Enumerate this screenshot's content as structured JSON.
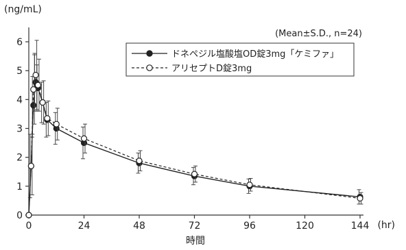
{
  "chart_data": {
    "type": "line",
    "ylabel": "(ng/mL)",
    "xlabel": "時間",
    "xunit": "(hr)",
    "annotation": "(Mean±S.D., n=24)",
    "xlim": [
      0,
      144
    ],
    "ylim": [
      0,
      6
    ],
    "xticks": [
      0,
      24,
      48,
      72,
      96,
      120,
      144
    ],
    "yticks": [
      0,
      1,
      2,
      3,
      4,
      5,
      6
    ],
    "grid": false,
    "legend_position": "top-right",
    "series": [
      {
        "name": "ドネペジル塩酸塩OD錠3mg「ケミファ」",
        "marker": "filled-circle",
        "line": "solid",
        "color": "#222222",
        "x": [
          0,
          1,
          2,
          3,
          4,
          6,
          8,
          12,
          24,
          48,
          72,
          96,
          144
        ],
        "y": [
          0,
          1.7,
          3.8,
          4.6,
          4.4,
          3.9,
          3.3,
          3.0,
          2.5,
          1.8,
          1.35,
          1.0,
          0.63
        ],
        "sd": [
          0,
          1.1,
          1.0,
          1.0,
          0.8,
          0.7,
          0.6,
          0.55,
          0.55,
          0.35,
          0.3,
          0.25,
          0.25
        ]
      },
      {
        "name": "アリセプトD錠3mg",
        "marker": "open-circle",
        "line": "dashed",
        "color": "#222222",
        "x": [
          0,
          1,
          2,
          3,
          4,
          6,
          8,
          12,
          24,
          48,
          72,
          96,
          144
        ],
        "y": [
          0,
          1.7,
          4.35,
          4.85,
          4.5,
          3.9,
          3.35,
          3.15,
          2.65,
          1.88,
          1.42,
          1.05,
          0.58
        ],
        "sd": [
          0,
          1.0,
          1.2,
          1.2,
          0.9,
          0.75,
          0.6,
          0.55,
          0.5,
          0.35,
          0.28,
          0.22,
          0.2
        ]
      }
    ]
  }
}
